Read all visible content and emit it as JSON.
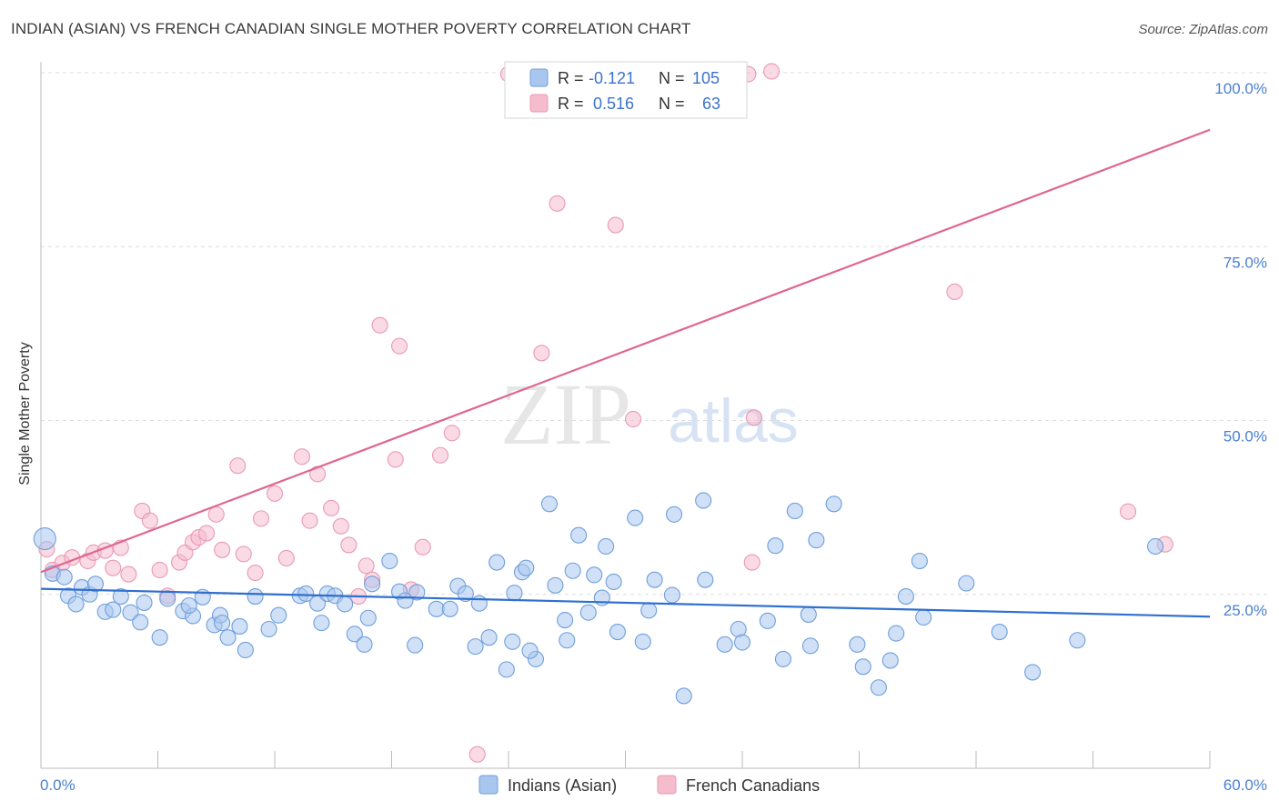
{
  "title": "INDIAN (ASIAN) VS FRENCH CANADIAN SINGLE MOTHER POVERTY CORRELATION CHART",
  "source": "Source: ZipAtlas.com",
  "watermark": {
    "zip": "ZIP",
    "atlas": "atlas"
  },
  "colors": {
    "blue_fill": "#a9c6ee",
    "blue_stroke": "#6f9fdc",
    "blue_line": "#2f6fcf",
    "pink_fill": "#f5bccd",
    "pink_stroke": "#e99ab3",
    "pink_line": "#e0668f",
    "tick_color": "#4a7fd4"
  },
  "stats_legend": {
    "row1": {
      "r_label": "R =",
      "r_value": "-0.121",
      "n_label": "N =",
      "n_value": "105"
    },
    "row2": {
      "r_label": "R =",
      "r_value": "0.516",
      "n_label": "N =",
      "n_value": "63"
    }
  },
  "chart_data": {
    "type": "scatter",
    "title": "INDIAN (ASIAN) VS FRENCH CANADIAN SINGLE MOTHER POVERTY CORRELATION CHART",
    "xlabel": "",
    "ylabel": "Single Mother Poverty",
    "xlim": [
      0,
      60
    ],
    "ylim": [
      0,
      100
    ],
    "x_tick_labels": [
      "0.0%",
      "60.0%"
    ],
    "y_tick_values": [
      25,
      50,
      75,
      100
    ],
    "y_tick_labels": [
      "25.0%",
      "50.0%",
      "75.0%",
      "100.0%"
    ],
    "grid": true,
    "legend_position": "bottom-center",
    "series": [
      {
        "name": "Indians (Asian)",
        "color": "#a9c6ee",
        "trend": {
          "x": [
            0,
            60
          ],
          "y": [
            25.8,
            21.8
          ]
        },
        "points": [
          [
            0.2,
            33
          ],
          [
            0.6,
            28
          ],
          [
            1.2,
            27.5
          ],
          [
            1.4,
            24.8
          ],
          [
            1.8,
            23.6
          ],
          [
            2.1,
            26
          ],
          [
            2.5,
            25
          ],
          [
            2.8,
            26.5
          ],
          [
            3.3,
            22.5
          ],
          [
            3.7,
            22.8
          ],
          [
            4.1,
            24.7
          ],
          [
            4.6,
            22.4
          ],
          [
            5.1,
            21
          ],
          [
            5.3,
            23.8
          ],
          [
            6.1,
            18.8
          ],
          [
            6.5,
            24.4
          ],
          [
            7.3,
            22.6
          ],
          [
            7.8,
            21.9
          ],
          [
            7.6,
            23.4
          ],
          [
            8.3,
            24.6
          ],
          [
            8.9,
            20.6
          ],
          [
            9.2,
            22
          ],
          [
            9.6,
            18.8
          ],
          [
            9.3,
            20.9
          ],
          [
            10.2,
            20.4
          ],
          [
            10.5,
            17
          ],
          [
            11.0,
            24.7
          ],
          [
            11.7,
            20
          ],
          [
            12.2,
            22
          ],
          [
            13.3,
            24.8
          ],
          [
            13.6,
            25.1
          ],
          [
            14.2,
            23.7
          ],
          [
            14.4,
            20.9
          ],
          [
            14.7,
            25.1
          ],
          [
            15.1,
            24.8
          ],
          [
            15.6,
            23.6
          ],
          [
            16.1,
            19.3
          ],
          [
            16.6,
            17.8
          ],
          [
            16.8,
            21.6
          ],
          [
            17.0,
            26.5
          ],
          [
            17.9,
            29.8
          ],
          [
            18.4,
            25.4
          ],
          [
            18.7,
            24.1
          ],
          [
            19.3,
            25.3
          ],
          [
            19.2,
            17.7
          ],
          [
            20.3,
            22.9
          ],
          [
            21.0,
            22.9
          ],
          [
            21.4,
            26.2
          ],
          [
            21.8,
            25.1
          ],
          [
            22.3,
            17.5
          ],
          [
            22.5,
            23.7
          ],
          [
            23.0,
            18.8
          ],
          [
            23.4,
            29.6
          ],
          [
            23.9,
            14.2
          ],
          [
            24.2,
            18.2
          ],
          [
            24.3,
            25.2
          ],
          [
            24.7,
            28.2
          ],
          [
            24.9,
            28.8
          ],
          [
            25.4,
            15.7
          ],
          [
            25.1,
            16.9
          ],
          [
            26.1,
            38
          ],
          [
            26.4,
            26.3
          ],
          [
            26.9,
            21.3
          ],
          [
            27.0,
            18.4
          ],
          [
            27.6,
            33.5
          ],
          [
            27.3,
            28.4
          ],
          [
            28.1,
            22.4
          ],
          [
            28.4,
            27.8
          ],
          [
            28.8,
            24.5
          ],
          [
            29.0,
            31.9
          ],
          [
            29.6,
            19.6
          ],
          [
            29.4,
            26.8
          ],
          [
            30.5,
            36
          ],
          [
            30.9,
            18.2
          ],
          [
            31.2,
            22.7
          ],
          [
            31.5,
            27.1
          ],
          [
            32.5,
            36.5
          ],
          [
            32.4,
            24.9
          ],
          [
            33.0,
            10.4
          ],
          [
            34.0,
            38.5
          ],
          [
            34.1,
            27.1
          ],
          [
            35.1,
            17.8
          ],
          [
            35.8,
            20
          ],
          [
            36.0,
            18.1
          ],
          [
            37.3,
            21.2
          ],
          [
            37.7,
            32
          ],
          [
            38.1,
            15.7
          ],
          [
            38.7,
            37
          ],
          [
            39.4,
            22.1
          ],
          [
            39.5,
            17.6
          ],
          [
            39.8,
            32.8
          ],
          [
            40.7,
            38
          ],
          [
            41.9,
            17.8
          ],
          [
            42.2,
            14.6
          ],
          [
            43.0,
            11.6
          ],
          [
            43.6,
            15.5
          ],
          [
            43.9,
            19.4
          ],
          [
            44.4,
            24.7
          ],
          [
            45.1,
            29.8
          ],
          [
            45.3,
            21.7
          ],
          [
            47.5,
            26.6
          ],
          [
            49.2,
            19.6
          ],
          [
            50.9,
            13.8
          ],
          [
            53.2,
            18.4
          ],
          [
            57.2,
            31.9
          ]
        ]
      },
      {
        "name": "French Canadians",
        "color": "#f5bccd",
        "trend": {
          "x": [
            0,
            60
          ],
          "y": [
            28.2,
            91.8
          ]
        },
        "points": [
          [
            0.3,
            31.5
          ],
          [
            0.6,
            28.5
          ],
          [
            1.1,
            29.5
          ],
          [
            1.6,
            30.3
          ],
          [
            2.4,
            29.8
          ],
          [
            2.7,
            31
          ],
          [
            3.3,
            31.3
          ],
          [
            3.7,
            28.8
          ],
          [
            4.1,
            31.7
          ],
          [
            4.5,
            27.9
          ],
          [
            5.2,
            37
          ],
          [
            5.6,
            35.6
          ],
          [
            6.1,
            28.5
          ],
          [
            6.5,
            24.8
          ],
          [
            7.1,
            29.6
          ],
          [
            7.4,
            31
          ],
          [
            7.8,
            32.5
          ],
          [
            8.1,
            33.2
          ],
          [
            8.5,
            33.8
          ],
          [
            9.0,
            36.5
          ],
          [
            9.3,
            31.4
          ],
          [
            10.1,
            43.5
          ],
          [
            10.4,
            30.8
          ],
          [
            11.0,
            28.1
          ],
          [
            11.3,
            35.9
          ],
          [
            12.0,
            39.5
          ],
          [
            12.6,
            30.2
          ],
          [
            13.4,
            44.8
          ],
          [
            13.8,
            35.6
          ],
          [
            14.2,
            42.3
          ],
          [
            14.9,
            37.4
          ],
          [
            15.4,
            34.8
          ],
          [
            15.8,
            32.1
          ],
          [
            16.3,
            24.7
          ],
          [
            16.7,
            29.1
          ],
          [
            17.0,
            27.1
          ],
          [
            17.4,
            63.7
          ],
          [
            18.2,
            44.4
          ],
          [
            18.4,
            60.7
          ],
          [
            19.0,
            25.7
          ],
          [
            19.6,
            31.8
          ],
          [
            20.5,
            45
          ],
          [
            21.1,
            48.2
          ],
          [
            22.4,
            2
          ],
          [
            24.0,
            99.8
          ],
          [
            24.4,
            100.2
          ],
          [
            24.7,
            99.8
          ],
          [
            25.0,
            100.2
          ],
          [
            25.7,
            59.7
          ],
          [
            26.5,
            81.2
          ],
          [
            29.5,
            78.1
          ],
          [
            30.4,
            50.2
          ],
          [
            33.0,
            99.8
          ],
          [
            33.6,
            100.2
          ],
          [
            34.5,
            100.2
          ],
          [
            35.7,
            100.2
          ],
          [
            36.3,
            99.8
          ],
          [
            36.5,
            29.6
          ],
          [
            36.6,
            50.4
          ],
          [
            37.5,
            100.2
          ],
          [
            46.9,
            68.5
          ],
          [
            55.8,
            36.9
          ],
          [
            57.7,
            32.2
          ]
        ]
      }
    ]
  },
  "bottom_legend": {
    "series1": "Indians (Asian)",
    "series2": "French Canadians"
  }
}
